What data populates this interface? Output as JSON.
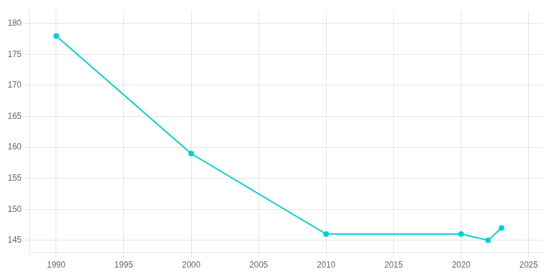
{
  "chart_data": {
    "type": "line",
    "x": [
      1990,
      2000,
      2010,
      2020,
      2022,
      2023
    ],
    "values": [
      178,
      159,
      146,
      146,
      145,
      147
    ],
    "color": "#00CED1",
    "marker": "circle",
    "xlim": [
      1988,
      2026
    ],
    "ylim": [
      143,
      182
    ],
    "xticks": [
      1990,
      1995,
      2000,
      2005,
      2010,
      2015,
      2020,
      2025
    ],
    "yticks": [
      145,
      150,
      155,
      160,
      165,
      170,
      175,
      180
    ],
    "grid": true
  }
}
